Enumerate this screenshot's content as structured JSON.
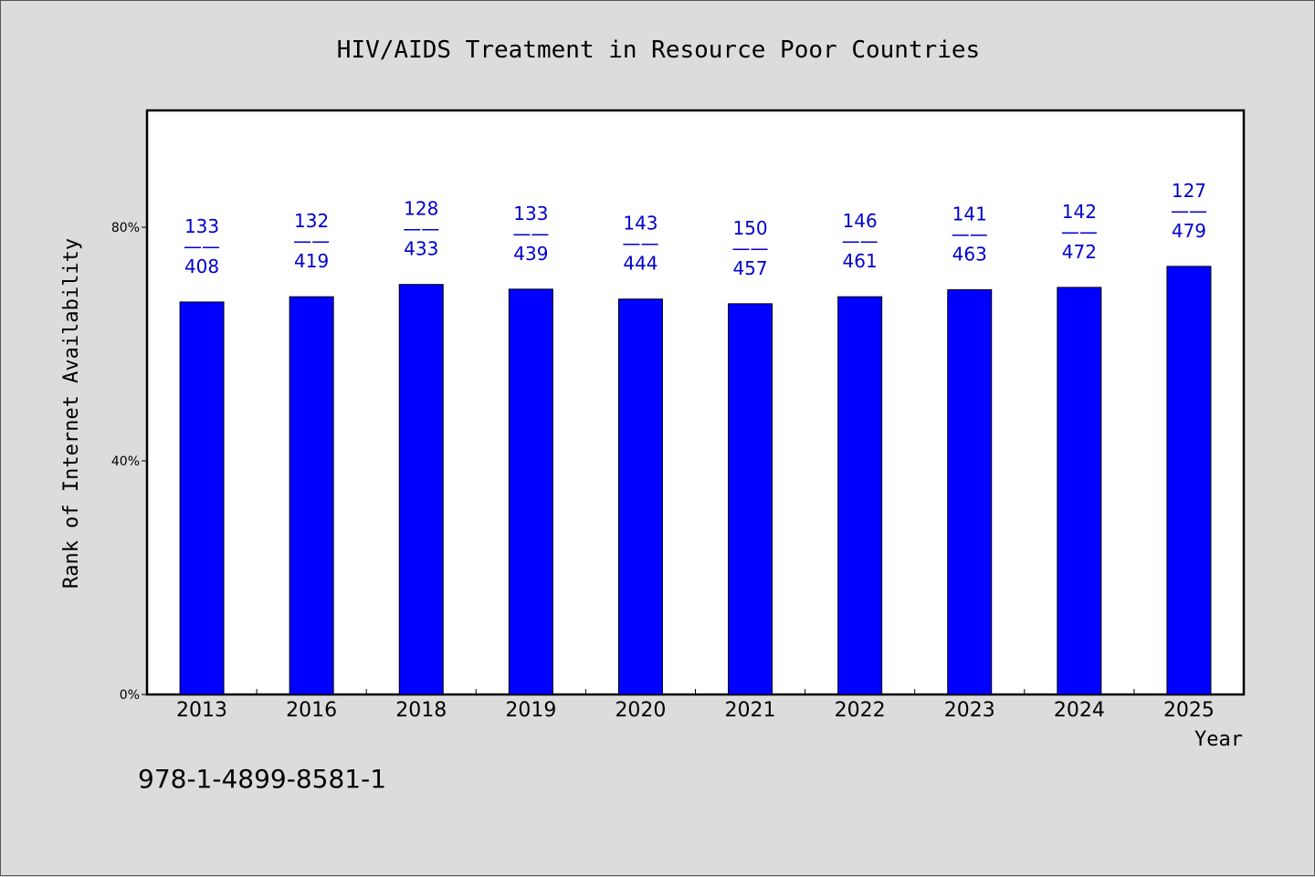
{
  "chart_data": {
    "type": "bar",
    "title": "HIV/AIDS Treatment in Resource Poor Countries",
    "xlabel": "Year",
    "ylabel": "Rank of Internet Availability",
    "categories": [
      "2013",
      "2016",
      "2018",
      "2019",
      "2020",
      "2021",
      "2022",
      "2023",
      "2024",
      "2025"
    ],
    "values": [
      0.672,
      0.681,
      0.702,
      0.694,
      0.677,
      0.669,
      0.681,
      0.693,
      0.697,
      0.733
    ],
    "labels": [
      {
        "top": "133",
        "bottom": "408"
      },
      {
        "top": "132",
        "bottom": "419"
      },
      {
        "top": "128",
        "bottom": "433"
      },
      {
        "top": "133",
        "bottom": "439"
      },
      {
        "top": "143",
        "bottom": "444"
      },
      {
        "top": "150",
        "bottom": "457"
      },
      {
        "top": "146",
        "bottom": "461"
      },
      {
        "top": "141",
        "bottom": "463"
      },
      {
        "top": "142",
        "bottom": "472"
      },
      {
        "top": "127",
        "bottom": "479"
      }
    ],
    "label_separator": "——",
    "ylim": [
      0,
      1.0
    ],
    "yticks": [
      {
        "value": 0,
        "label": "0%"
      },
      {
        "value": 0.4,
        "label": "40%"
      },
      {
        "value": 0.8,
        "label": "80%"
      }
    ],
    "grid": false,
    "bar_color": "#0000ff",
    "annotation": "978-1-4899-8581-1"
  }
}
